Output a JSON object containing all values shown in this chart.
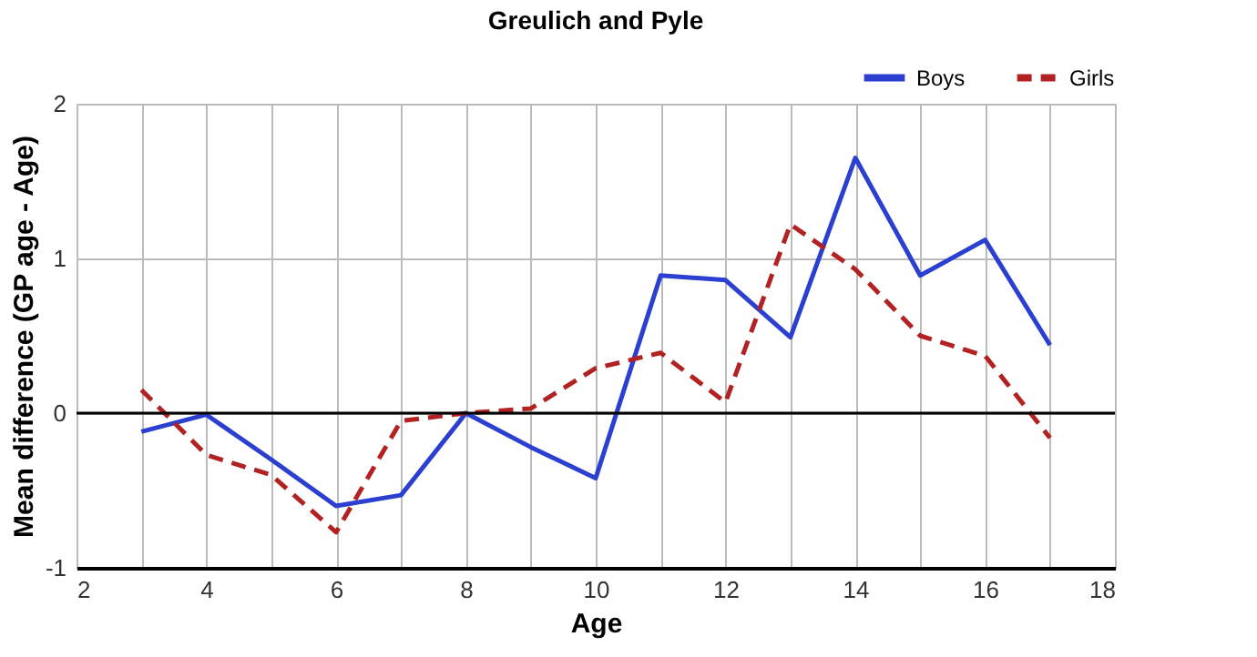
{
  "chart_data": {
    "type": "line",
    "title": "Greulich and Pyle",
    "xlabel": "Age",
    "ylabel": "Mean difference (GP age - Age)",
    "x": [
      3,
      4,
      5,
      6,
      7,
      8,
      9,
      10,
      11,
      12,
      13,
      14,
      15,
      16,
      17
    ],
    "series": [
      {
        "name": "Boys",
        "color": "#2b3fd1",
        "line_style": "solid",
        "values": [
          -0.12,
          -0.01,
          -0.3,
          -0.6,
          -0.53,
          0,
          -0.22,
          -0.42,
          0.89,
          0.86,
          0.49,
          1.65,
          0.89,
          1.12,
          0.44
        ]
      },
      {
        "name": "Girls",
        "color": "#b22222",
        "line_style": "dashed",
        "values": [
          0.15,
          -0.27,
          -0.4,
          -0.77,
          -0.05,
          0,
          0.03,
          0.29,
          0.39,
          0.07,
          1.22,
          0.93,
          0.5,
          0.37,
          -0.16
        ]
      }
    ],
    "xlim": [
      2,
      18
    ],
    "xticks": [
      2,
      {
        "value": 3,
        "label": null
      },
      4,
      {
        "value": 5,
        "label": null
      },
      6,
      {
        "value": 7,
        "label": null
      },
      8,
      {
        "value": 9,
        "label": null
      },
      10,
      {
        "value": 11,
        "label": null
      },
      12,
      {
        "value": 13,
        "label": null
      },
      14,
      {
        "value": 15,
        "label": null
      },
      16,
      {
        "value": 17,
        "label": null
      },
      18
    ],
    "ylim": [
      -1,
      2
    ],
    "yticks": [
      -1,
      0,
      1,
      2
    ],
    "ref_lines": [
      {
        "axis": "y",
        "value": 0,
        "color": "#000000"
      }
    ],
    "grid": true,
    "legend": "top right"
  }
}
